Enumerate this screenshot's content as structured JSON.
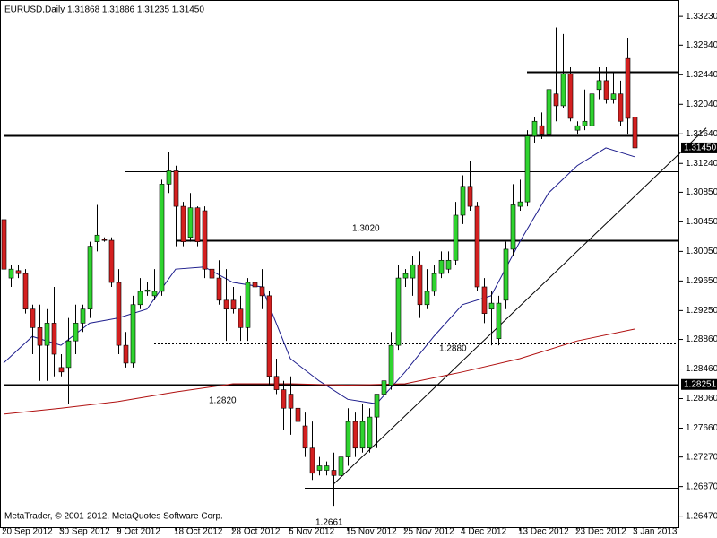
{
  "chart_data": {
    "type": "candlestick",
    "title": "EURUSD,Daily  1.31868 1.31886 1.31235 1.31450",
    "footer": "MetaTrader, © 2001-2012, MetaQuotes Software Corp.",
    "up_color": "#2fd42f",
    "down_color": "#d42020",
    "categories": [
      "20 Sep 2012",
      null,
      null,
      null,
      null,
      null,
      null,
      null,
      "30 Sep 2012",
      null,
      null,
      null,
      null,
      null,
      null,
      null,
      "9 Oct 2012",
      null,
      null,
      null,
      null,
      null,
      null,
      null,
      "18 Oct 2012",
      null,
      null,
      null,
      null,
      null,
      null,
      null,
      "28 Oct 2012",
      null,
      null,
      null,
      null,
      null,
      null,
      null,
      "6 Nov 2012",
      null,
      null,
      null,
      null,
      null,
      null,
      null,
      "15 Nov 2012",
      null,
      null,
      null,
      null,
      null,
      null,
      null,
      "25 Nov 2012",
      null,
      null,
      null,
      null,
      null,
      null,
      null,
      "4 Dec 2012",
      null,
      null,
      null,
      null,
      null,
      null,
      null,
      "13 Dec 2012",
      null,
      null,
      null,
      null,
      null,
      null,
      null,
      "23 Dec 2012",
      null,
      null,
      null,
      null,
      null,
      null,
      null,
      "3 Jan 2013"
    ],
    "open": [
      1.3048,
      1.2969,
      1.2979,
      1.2975,
      1.2927,
      1.2902,
      1.2878,
      1.2908,
      1.2848,
      1.2848,
      1.2884,
      1.2908,
      1.2927,
      1.3018,
      1.3021,
      1.302,
      1.2963,
      1.2878,
      1.2854,
      1.2933,
      1.2951,
      1.2945,
      1.2951,
      1.3096,
      1.3114,
      1.3066,
      1.3024,
      1.3064,
      1.306,
      1.2981,
      1.2969,
      1.2939,
      1.2939,
      1.2927,
      1.2902,
      1.2963,
      1.2957,
      1.2945,
      1.2836,
      1.2818,
      1.2812,
      1.2793,
      1.2769,
      1.2739,
      1.2709,
      1.2709,
      1.2709,
      1.2702,
      1.2727,
      1.2775,
      1.2739,
      1.2739,
      1.2781,
      1.2812,
      1.2824,
      1.2878,
      1.2969,
      1.2969,
      1.2987,
      1.2933,
      1.2951,
      1.2975,
      1.2981,
      1.2993,
      1.3054,
      1.3093,
      1.3066,
      1.2957,
      1.2927,
      1.2887,
      1.2939,
      1.3008,
      1.3066,
      1.3072,
      1.3161,
      1.3175,
      1.3163,
      1.3218,
      1.3202,
      1.3245,
      1.3169,
      1.3175,
      1.3175,
      1.3224,
      1.3236,
      1.3211,
      1.3218,
      1.3266,
      1.31868
    ],
    "high": [
      1.3056,
      1.2987,
      1.2987,
      1.2981,
      1.2933,
      1.2933,
      1.2927,
      1.2957,
      1.2866,
      1.2915,
      1.2933,
      1.2933,
      1.3018,
      1.3068,
      1.3024,
      1.3024,
      1.2981,
      1.2896,
      1.2945,
      1.2969,
      1.2963,
      1.2981,
      1.3102,
      1.3139,
      1.3121,
      1.3072,
      1.3084,
      1.3066,
      1.3066,
      1.2993,
      1.2993,
      1.2981,
      1.2957,
      1.2945,
      1.2969,
      1.3018,
      1.2981,
      1.2951,
      1.286,
      1.283,
      1.2836,
      1.2872,
      1.2787,
      1.2775,
      1.2727,
      1.2721,
      1.2733,
      1.2739,
      1.2793,
      1.2787,
      1.2799,
      1.2793,
      1.2812,
      1.2836,
      1.2896,
      1.2987,
      1.2981,
      1.2999,
      1.3005,
      1.2981,
      1.2987,
      1.3005,
      1.3005,
      1.3072,
      1.3108,
      1.3127,
      1.3072,
      1.2969,
      1.2951,
      1.2945,
      1.3018,
      1.3096,
      1.3102,
      1.3169,
      1.3187,
      1.3193,
      1.323,
      1.3308,
      1.3299,
      1.3254,
      1.3181,
      1.3224,
      1.3248,
      1.3254,
      1.3254,
      1.3248,
      1.3236,
      1.3294,
      1.31886
    ],
    "low": [
      1.2915,
      1.2957,
      1.2969,
      1.2921,
      1.2866,
      1.283,
      1.283,
      1.2836,
      1.2836,
      1.2799,
      1.2866,
      1.2896,
      1.2915,
      1.3005,
      1.3018,
      1.2957,
      1.2866,
      1.2848,
      1.2848,
      1.2927,
      1.2945,
      1.2939,
      1.2945,
      1.3084,
      1.3012,
      1.3012,
      1.3018,
      1.3012,
      1.2969,
      1.2921,
      1.2933,
      1.2884,
      1.2921,
      1.2884,
      1.2884,
      1.2951,
      1.2927,
      1.2824,
      1.2812,
      1.2763,
      1.2757,
      1.2733,
      1.2727,
      1.2696,
      1.2702,
      1.2702,
      1.2661,
      1.269,
      1.2715,
      1.2727,
      1.2733,
      1.2733,
      1.2739,
      1.2805,
      1.2818,
      1.2872,
      1.2957,
      1.2945,
      1.2915,
      1.2927,
      1.2945,
      1.2969,
      1.2975,
      1.2987,
      1.3042,
      1.306,
      1.2951,
      1.2908,
      1.2878,
      1.2878,
      1.2927,
      1.2999,
      1.306,
      1.3066,
      1.3151,
      1.3157,
      1.3157,
      1.3181,
      1.3199,
      1.3181,
      1.3163,
      1.3169,
      1.3169,
      1.3211,
      1.3205,
      1.3205,
      1.3175,
      1.3163,
      1.31235
    ],
    "close": [
      1.2981,
      1.2981,
      1.2975,
      1.2927,
      1.2902,
      1.2878,
      1.2908,
      1.2866,
      1.2842,
      1.2884,
      1.2908,
      1.2927,
      1.3012,
      1.3027,
      1.302,
      1.2963,
      1.2878,
      1.2854,
      1.2933,
      1.2951,
      1.2953,
      1.2951,
      1.3096,
      1.3114,
      1.3066,
      1.3018,
      1.3064,
      1.3018,
      1.2981,
      1.2969,
      1.2939,
      1.2927,
      1.2927,
      1.2902,
      1.2963,
      1.2957,
      1.2945,
      1.2836,
      1.2818,
      1.2793,
      1.2793,
      1.2775,
      1.2739,
      1.2705,
      1.2715,
      1.2715,
      1.2702,
      1.2727,
      1.2775,
      1.2739,
      1.2775,
      1.2781,
      1.2812,
      1.283,
      1.2878,
      1.2969,
      1.2975,
      1.2987,
      1.2933,
      1.2951,
      1.2975,
      1.2993,
      1.2993,
      1.3054,
      1.3093,
      1.3066,
      1.2957,
      1.2921,
      1.2935,
      1.2935,
      1.3008,
      1.3068,
      1.3072,
      1.3161,
      1.3181,
      1.3163,
      1.3224,
      1.3202,
      1.3245,
      1.3185,
      1.3175,
      1.3181,
      1.3218,
      1.3236,
      1.3211,
      1.3218,
      1.3181,
      1.3185,
      1.3145
    ],
    "ylim": [
      1.2632,
      1.3345
    ],
    "yticks": [
      {
        "value": 1.3323,
        "label": "1.33230"
      },
      {
        "value": 1.3284,
        "label": "1.32840"
      },
      {
        "value": 1.3244,
        "label": "1.32440"
      },
      {
        "value": 1.3204,
        "label": "1.32040"
      },
      {
        "value": 1.3164,
        "label": "1.31640"
      },
      {
        "value": 1.3124,
        "label": "1.31240"
      },
      {
        "value": 1.3085,
        "label": "1.30850"
      },
      {
        "value": 1.3045,
        "label": "1.30450"
      },
      {
        "value": 1.3005,
        "label": "1.30050"
      },
      {
        "value": 1.2965,
        "label": "1.29650"
      },
      {
        "value": 1.2925,
        "label": "1.29250"
      },
      {
        "value": 1.2886,
        "label": "1.28860"
      },
      {
        "value": 1.2846,
        "label": "1.28460"
      },
      {
        "value": 1.2806,
        "label": "1.28060"
      },
      {
        "value": 1.2766,
        "label": "1.27660"
      },
      {
        "value": 1.2727,
        "label": "1.27270"
      },
      {
        "value": 1.2687,
        "label": "1.26870"
      },
      {
        "value": 1.2647,
        "label": "1.26470"
      }
    ],
    "indicators": [
      {
        "color": "#1c1c8c",
        "x": [
          0,
          4,
          8,
          12,
          16,
          20,
          24,
          28,
          32,
          36,
          40,
          44,
          48,
          52,
          56,
          60,
          64,
          68,
          72,
          76,
          80,
          84,
          88
        ],
        "values": [
          1.2854,
          1.289,
          1.2878,
          1.2908,
          1.2915,
          1.2927,
          1.2981,
          1.2984,
          1.2963,
          1.2957,
          1.286,
          1.283,
          1.2805,
          1.2799,
          1.2842,
          1.289,
          1.2933,
          1.2945,
          1.3018,
          1.3084,
          1.3121,
          1.3145,
          1.3133
        ]
      },
      {
        "color": "#b01010",
        "x": [
          0,
          8,
          16,
          24,
          32,
          40,
          48,
          56,
          64,
          72,
          80,
          88
        ],
        "values": [
          1.2785,
          1.2793,
          1.2802,
          1.2815,
          1.2826,
          1.2826,
          1.2824,
          1.2826,
          1.2842,
          1.286,
          1.2884,
          1.29
        ]
      }
    ],
    "levels": [
      {
        "value": 1.3248,
        "start": 73,
        "style": "thick"
      },
      {
        "value": 1.3162,
        "start": 0,
        "style": "thick"
      },
      {
        "value": 1.3113,
        "start": 17,
        "style": "thin"
      },
      {
        "value": 1.302,
        "start": 24,
        "style": "thick"
      },
      {
        "value": 1.288,
        "start": 21,
        "style": "dotted"
      },
      {
        "value": 1.28251,
        "start": 0,
        "style": "thick"
      },
      {
        "value": 1.2685,
        "start": 42,
        "style": "thin"
      }
    ],
    "trendline": {
      "x": [
        46,
        98
      ],
      "values": [
        1.269,
        1.3172
      ]
    },
    "price_labels": [
      {
        "value": 1.3145,
        "label": "1.31450"
      },
      {
        "value": 1.28251,
        "label": "1.28251"
      }
    ],
    "annotations": [
      "1.3020",
      "1.2880",
      "1.2820",
      "1.2661"
    ]
  }
}
